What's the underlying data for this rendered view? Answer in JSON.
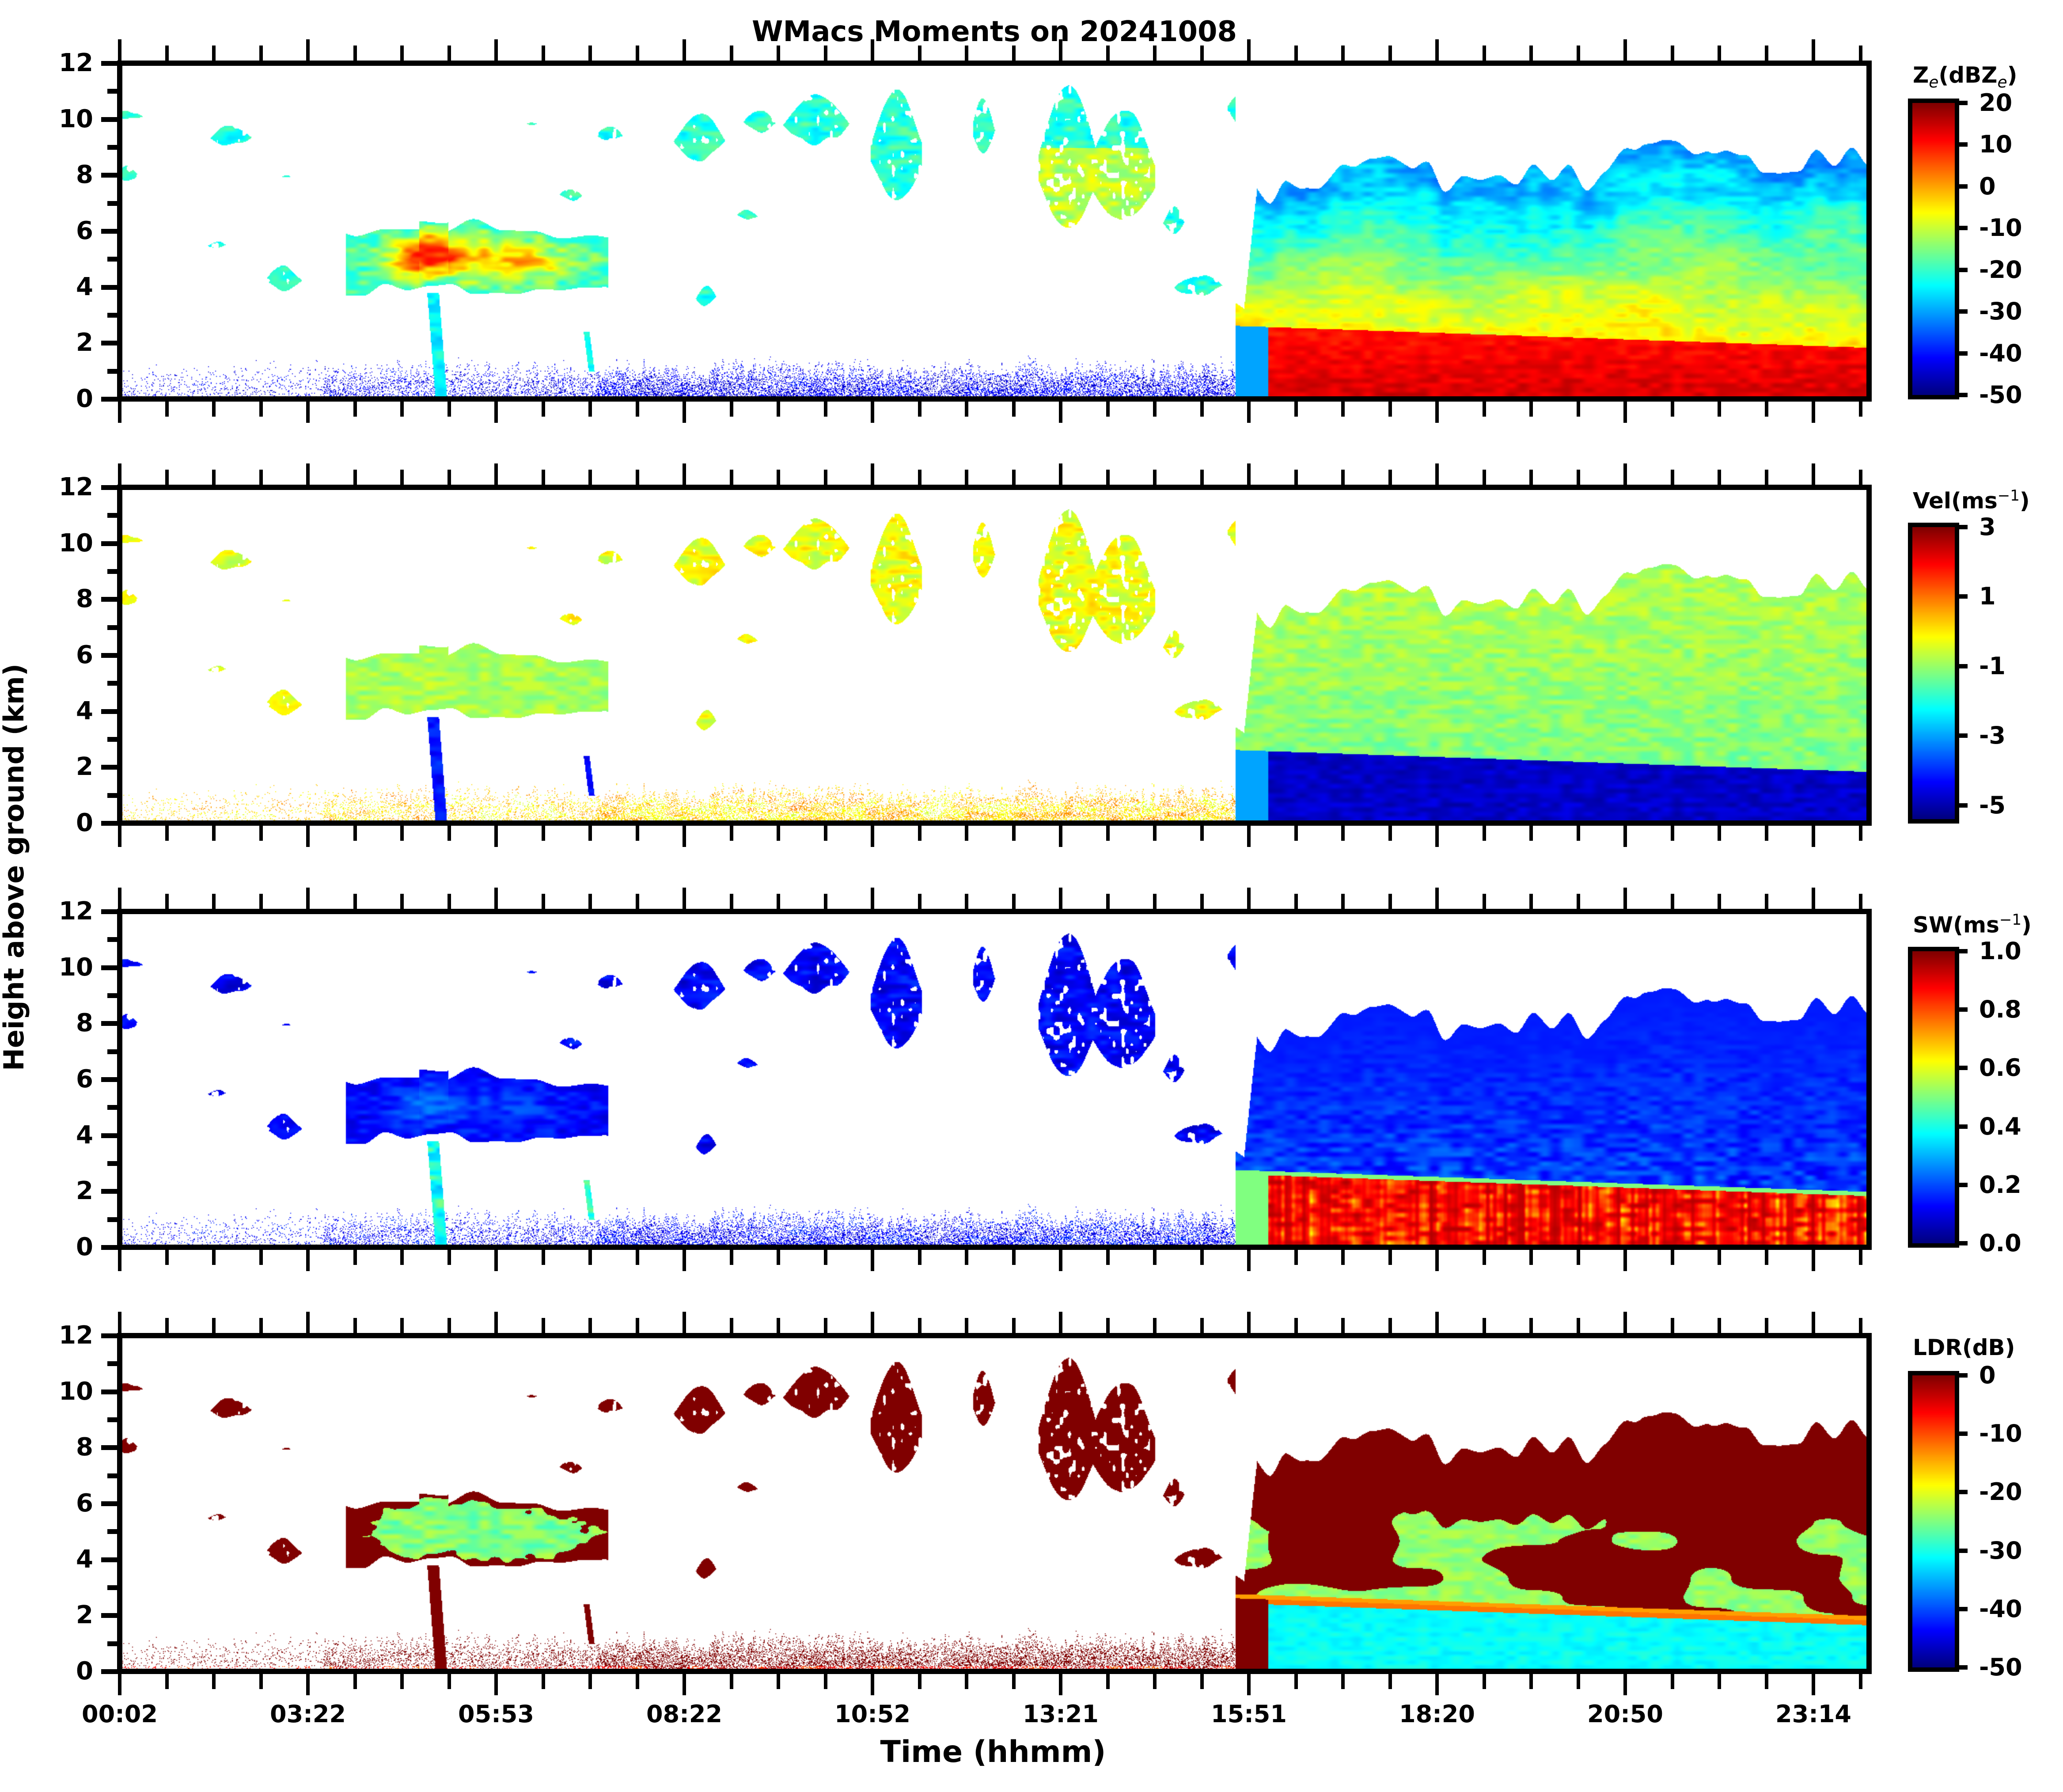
{
  "figure": {
    "title": "WMacs Moments on 20241008",
    "xlabel": "Time (hhmm)",
    "ylabel": "Height above ground (km)"
  },
  "colors": {
    "background": "#ffffff",
    "axes": "#000000",
    "colormap": "jet"
  },
  "chart_data": [
    {
      "type": "heatmap",
      "id": "ze",
      "cbar_title_main": "Z",
      "cbar_title_sub": "e",
      "cbar_title_mid": "(dBZ",
      "cbar_title_sub2": "e",
      "cbar_title_end": ")",
      "vmin": -50,
      "vmax": 20,
      "cbar_ticks": [
        20,
        10,
        0,
        -10,
        -20,
        -30,
        -40,
        -50
      ],
      "cbar_tick_labels": [
        "20",
        "10",
        "0",
        "-10",
        "-20",
        "-30",
        "-40",
        "-50"
      ],
      "xlabel": "Time (hhmm)",
      "ylabel": "Height above ground (km)",
      "ylim": [
        0,
        12
      ],
      "yticks": [
        0,
        2,
        4,
        6,
        8,
        10,
        12
      ],
      "cloud_values": {
        "high_ice": -22,
        "mid_cloud_core": 8,
        "mid_cloud_edge": -20,
        "evening_low": 14,
        "evening_mid": -5,
        "evening_top": -25,
        "clutter": -45
      }
    },
    {
      "type": "heatmap",
      "id": "vel",
      "cbar_title_main": "Vel(ms",
      "cbar_title_sup": "−1",
      "cbar_title_end": ")",
      "vmin": -5.4,
      "vmax": 3,
      "cbar_ticks": [
        3,
        1,
        -1,
        -3,
        -5
      ],
      "cbar_tick_labels": [
        "3",
        "1",
        "-1",
        "-3",
        "-5"
      ],
      "ylim": [
        0,
        12
      ],
      "yticks": [
        0,
        2,
        4,
        6,
        8,
        10,
        12
      ],
      "cloud_values": {
        "high_ice": -0.3,
        "mid_cloud_core": -0.8,
        "mid_cloud_edge": -0.9,
        "evening_low": -4.8,
        "evening_mid": -1.2,
        "evening_top": -1.0,
        "clutter": 0.2
      }
    },
    {
      "type": "heatmap",
      "id": "sw",
      "cbar_title_main": "SW(ms",
      "cbar_title_sup": "−1",
      "cbar_title_end": ")",
      "vmin": 0.0,
      "vmax": 1.0,
      "cbar_ticks": [
        1.0,
        0.8,
        0.6,
        0.4,
        0.2,
        0.0
      ],
      "cbar_tick_labels": [
        "1.0",
        "0.8",
        "0.6",
        "0.4",
        "0.2",
        "0.0"
      ],
      "ylim": [
        0,
        12
      ],
      "yticks": [
        0,
        2,
        4,
        6,
        8,
        10,
        12
      ],
      "cloud_values": {
        "high_ice": 0.12,
        "mid_cloud_core": 0.22,
        "mid_cloud_edge": 0.12,
        "evening_low": 0.95,
        "evening_mid": 0.15,
        "evening_top": 0.1,
        "clutter": 0.08
      }
    },
    {
      "type": "heatmap",
      "id": "ldr",
      "cbar_title_main": "LDR(dB)",
      "vmin": -50,
      "vmax": 0,
      "cbar_ticks": [
        0,
        -10,
        -20,
        -30,
        -40,
        -50
      ],
      "cbar_tick_labels": [
        "0",
        "-10",
        "-20",
        "-30",
        "-40",
        "-50"
      ],
      "ylim": [
        0,
        12
      ],
      "yticks": [
        0,
        2,
        4,
        6,
        8,
        10,
        12
      ],
      "cloud_values": {
        "high_ice": 0,
        "mid_cloud_core": -25,
        "mid_cloud_edge": 0,
        "evening_low": -31,
        "evening_mid": -24,
        "evening_top": 0,
        "clutter": 0
      }
    }
  ],
  "time_axis": {
    "tick_labels": [
      "00:02",
      "03:22",
      "05:53",
      "08:22",
      "10:52",
      "13:21",
      "15:51",
      "18:20",
      "20:50",
      "23:14"
    ],
    "minor_per_major": 3
  },
  "y_tick_labels": [
    "0",
    "2",
    "4",
    "6",
    "8",
    "10",
    "12"
  ],
  "features": {
    "high_clouds_hours_km": [
      [
        0.0,
        0.4,
        9.8,
        10.6
      ],
      [
        0.0,
        0.3,
        7.6,
        8.6
      ],
      [
        1.2,
        1.8,
        9.0,
        10.0
      ],
      [
        1.1,
        1.5,
        5.3,
        5.9
      ],
      [
        2.0,
        2.5,
        3.8,
        4.8
      ],
      [
        2.2,
        2.6,
        7.8,
        8.1
      ],
      [
        5.5,
        5.8,
        9.6,
        10.2
      ],
      [
        6.0,
        6.4,
        7.0,
        7.6
      ],
      [
        6.5,
        6.9,
        9.0,
        10.0
      ],
      [
        7.9,
        8.2,
        3.2,
        4.2
      ],
      [
        7.6,
        8.3,
        8.4,
        10.4
      ],
      [
        8.4,
        8.8,
        6.2,
        7.1
      ],
      [
        8.5,
        9.0,
        9.4,
        10.6
      ],
      [
        9.1,
        10.0,
        9.0,
        11.2
      ],
      [
        10.3,
        11.0,
        7.0,
        11.2
      ],
      [
        11.7,
        12.0,
        8.6,
        11.0
      ],
      [
        12.6,
        13.4,
        6.0,
        11.4
      ],
      [
        13.3,
        14.2,
        6.2,
        10.6
      ],
      [
        14.3,
        14.6,
        5.8,
        7.2
      ],
      [
        14.4,
        15.2,
        3.6,
        4.6
      ],
      [
        15.2,
        15.6,
        9.6,
        11.4
      ],
      [
        15.4,
        15.8,
        6.2,
        9.0
      ],
      [
        15.6,
        15.8,
        3.6,
        4.4
      ]
    ],
    "mid_cloud_hours_km": [
      3.1,
      6.7,
      3.6,
      6.5
    ],
    "evening_start_hour": 15.6,
    "clutter_top_km": 1.6
  }
}
